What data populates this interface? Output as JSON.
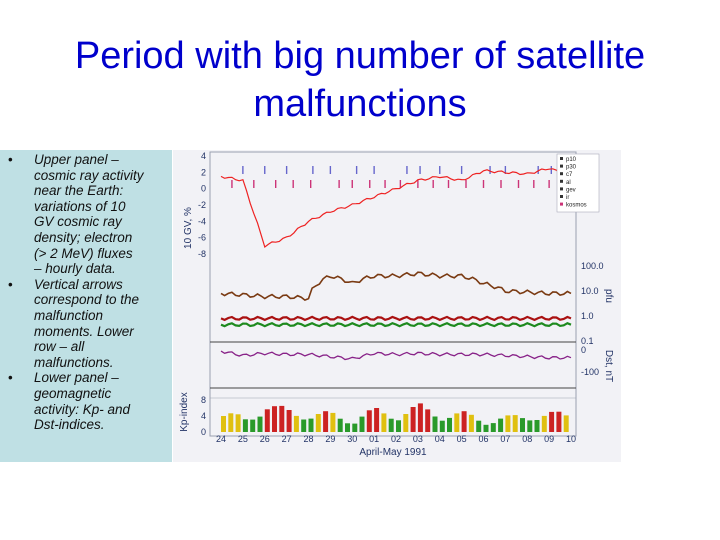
{
  "slide": {
    "title_line1": "Period with big number of satellite",
    "title_line2": "malfunctions"
  },
  "bullets": [
    {
      "marker": "•",
      "lines": [
        "Upper panel –",
        "cosmic ray activity",
        "near the Earth:",
        "variations of 10",
        "GV cosmic ray",
        "density; electron",
        "(> 2 MeV) fluxes",
        " – hourly data."
      ]
    },
    {
      "marker": "•",
      "lines": [
        "Vertical arrows",
        "correspond to the",
        "malfunction",
        "moments. Lower",
        "row – all",
        "malfunctions."
      ]
    },
    {
      "marker": "•",
      "lines": [
        "Lower panel –",
        "geomagnetic",
        "activity: Kp- and",
        "Dst-indices."
      ]
    }
  ],
  "chart": {
    "xlabel": "April-May 1991",
    "x_ticks": [
      "24",
      "25",
      "26",
      "27",
      "28",
      "29",
      "30",
      "01",
      "02",
      "03",
      "04",
      "05",
      "06",
      "07",
      "08",
      "09",
      "10"
    ],
    "left_axis_label": "10 GV, %",
    "left_ticks": [
      "4",
      "2",
      "0",
      "-2",
      "-4",
      "-6",
      "-8"
    ],
    "flux_axis_label": "pfu",
    "flux_ticks": [
      "100.0",
      "10.0",
      "1.0",
      "0.1"
    ],
    "dst_axis_label": "Dst, nT",
    "dst_ticks": [
      "0",
      "-100"
    ],
    "kp_axis_label": "Kp-index",
    "kp_ticks": [
      "8",
      "4",
      "0"
    ],
    "legend": [
      "p10",
      "p30",
      "c7",
      "al",
      "gev",
      "ir",
      "kosmos"
    ],
    "colors": {
      "background": "#f2f2f6",
      "cosmic_ray": "#ee2222",
      "electron": "#7a3a12",
      "flux_red": "#aa1111",
      "flux_green": "#1e8a1e",
      "dst": "#882288",
      "malfunction_top": "#6666cc",
      "malfunction_bottom": "#cc3377"
    }
  },
  "chart_data": {
    "type": "line",
    "title": "",
    "xlabel": "April-May 1991",
    "x": [
      "24",
      "25",
      "26",
      "27",
      "28",
      "29",
      "30",
      "01",
      "02",
      "03",
      "04",
      "05",
      "06",
      "07",
      "08",
      "09",
      "10"
    ],
    "panels": [
      {
        "name": "cosmic ray 10 GV",
        "ylabel": "10 GV, %",
        "ylim": [
          -8,
          4
        ],
        "values": [
          1.5,
          1.0,
          -7.0,
          -6.0,
          -4.0,
          -2.8,
          -2.0,
          -1.0,
          0.0,
          1.0,
          1.5,
          1.0,
          2.2,
          2.0,
          1.8,
          2.5,
          1.5
        ]
      },
      {
        "name": "electron (> 2 MeV) flux",
        "ylabel": "pfu",
        "yscale": "log",
        "ylim": [
          0.1,
          100
        ],
        "values": [
          8,
          7,
          6,
          6,
          5,
          40,
          20,
          40,
          40,
          50,
          40,
          40,
          20,
          10,
          9,
          8,
          8
        ]
      },
      {
        "name": "Dst",
        "ylabel": "Dst, nT",
        "ylim": [
          -100,
          0
        ],
        "values": [
          -5,
          -25,
          -15,
          -20,
          -20,
          -30,
          -40,
          -15,
          -20,
          -15,
          -20,
          -20,
          -20,
          -25,
          -30,
          -35,
          -35
        ]
      },
      {
        "name": "Kp",
        "ylabel": "Kp-index",
        "ylim": [
          0,
          8
        ],
        "values": [
          4,
          3,
          6,
          5,
          4,
          4,
          3,
          5,
          4,
          6,
          4,
          4,
          3,
          3,
          4,
          4,
          4
        ]
      }
    ],
    "legend": [
      "p10",
      "p30",
      "c7",
      "al",
      "gev",
      "ir",
      "kosmos"
    ],
    "grid": false
  }
}
